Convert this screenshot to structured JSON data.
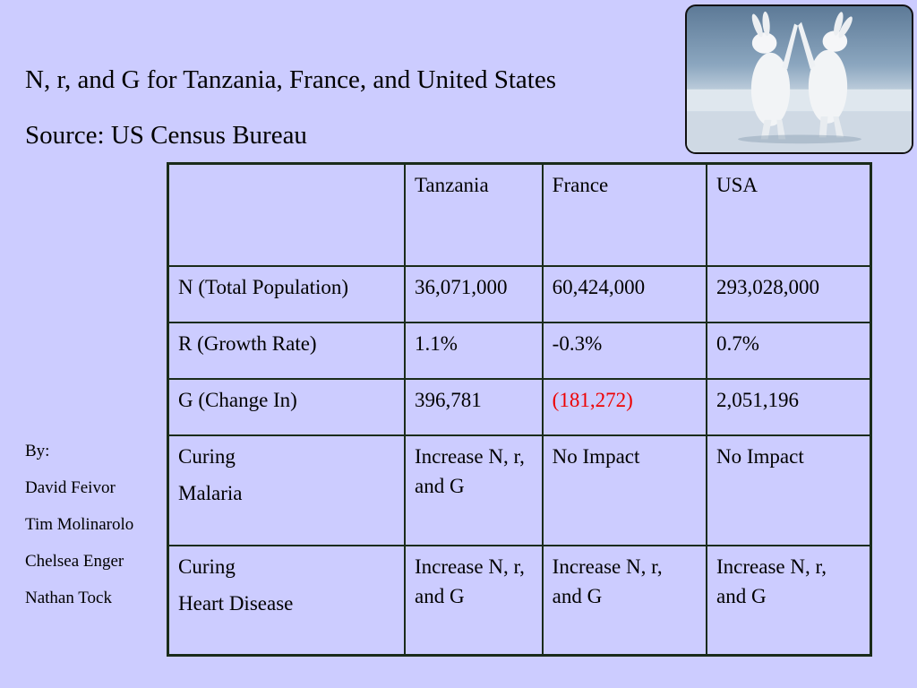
{
  "slide": {
    "title": "N, r, and G for Tanzania, France, and United States",
    "subtitle": "Source: US Census Bureau"
  },
  "photo": {
    "icon": "arctic-hares-photo"
  },
  "credits": {
    "label": "By:",
    "names": [
      "David Feivor",
      "Tim Molinarolo",
      "Chelsea Enger",
      "Nathan Tock"
    ]
  },
  "table": {
    "headers": [
      "",
      "Tanzania",
      "France",
      "USA"
    ],
    "rows": [
      {
        "label": [
          "N (Total Population)"
        ],
        "values": [
          "36,071,000",
          "60,424,000",
          "293,028,000"
        ]
      },
      {
        "label": [
          "R (Growth Rate)"
        ],
        "values": [
          "1.1%",
          "-0.3%",
          "0.7%"
        ]
      },
      {
        "label": [
          "G (Change In)"
        ],
        "values": [
          "396,781",
          "(181,272)",
          "2,051,196"
        ]
      },
      {
        "label": [
          "Curing",
          "Malaria"
        ],
        "values": [
          "Increase N, r, and G",
          "No Impact",
          "No Impact"
        ]
      },
      {
        "label": [
          "Curing",
          "Heart Disease"
        ],
        "values": [
          "Increase N, r, and G",
          "Increase N, r, and G",
          "Increase N, r, and G"
        ]
      }
    ],
    "negative_color": "#ee0000"
  }
}
